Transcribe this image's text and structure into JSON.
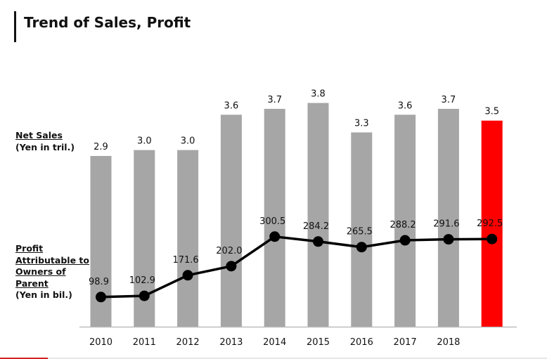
{
  "title": "Trend of Sales, Profit",
  "sales_label": {
    "line1": "Net Sales",
    "line2": "(Yen in tril.)"
  },
  "profit_label": {
    "line1": "Profit",
    "line2": "Attributable to",
    "line3": "Owners of",
    "line4": "Parent",
    "line5": "(Yen in bil.)"
  },
  "colors": {
    "bar": "#a6a6a6",
    "highlight_bar": "#ff0000",
    "line": "#000000",
    "text": "#111111"
  },
  "chart_data": {
    "type": "bar+line",
    "title": "Trend of Sales, Profit",
    "categories": [
      "2010",
      "2011",
      "2012",
      "2013",
      "2014",
      "2015",
      "2016",
      "2017",
      "2018",
      ""
    ],
    "series": [
      {
        "name": "Net Sales (Yen in tril.)",
        "type": "bar",
        "values": [
          2.9,
          3.0,
          3.0,
          3.6,
          3.7,
          3.8,
          3.3,
          3.6,
          3.7,
          3.5
        ],
        "labels": [
          "2.9",
          "3.0",
          "3.0",
          "3.6",
          "3.7",
          "3.8",
          "3.3",
          "3.6",
          "3.7",
          "3.5"
        ],
        "highlight_index": 9
      },
      {
        "name": "Profit Attributable to Owners of Parent (Yen in bil.)",
        "type": "line",
        "values": [
          98.9,
          102.9,
          171.6,
          202.0,
          300.5,
          284.2,
          265.5,
          288.2,
          291.6,
          292.5
        ],
        "labels": [
          "98.9",
          "102.9",
          "171.6",
          "202.0",
          "300.5",
          "284.2",
          "265.5",
          "288.2",
          "291.6",
          "292.5"
        ]
      }
    ],
    "bar_ylim": [
      0,
      3.8
    ],
    "line_ylim": [
      0,
      300.5
    ],
    "grid": false,
    "legend": "left"
  }
}
